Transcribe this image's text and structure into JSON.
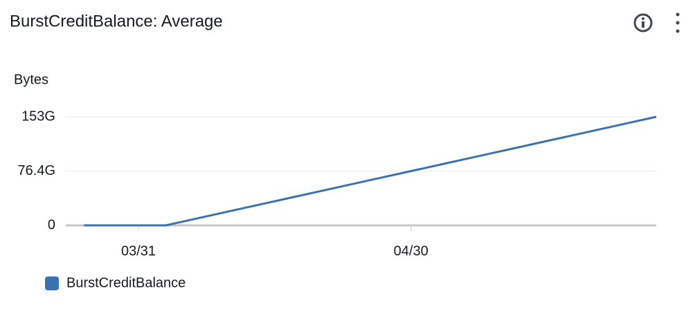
{
  "chart_data": {
    "type": "line",
    "title": "BurstCreditBalance: Average",
    "y_label": "Bytes",
    "x": [
      "03/25",
      "03/28",
      "03/31",
      "04/03",
      "04/06",
      "04/09",
      "04/12",
      "04/15",
      "04/18",
      "04/21",
      "04/24",
      "04/27",
      "04/30",
      "05/03",
      "05/06",
      "05/09",
      "05/12",
      "05/15",
      "05/18",
      "05/21",
      "05/24",
      "05/27"
    ],
    "series": [
      {
        "name": "BurstCreditBalance",
        "color": "#3a72b0",
        "values": [
          0,
          0,
          0,
          0,
          8.5,
          17,
          25.5,
          34,
          42.5,
          51,
          59.5,
          68,
          76.5,
          85,
          93.5,
          102,
          110.5,
          119,
          127.5,
          136,
          144.5,
          153
        ]
      }
    ],
    "xlim": [
      "03/23",
      "05/27"
    ],
    "xticks": [
      "03/31",
      "04/30"
    ],
    "ylim": [
      0,
      153
    ],
    "yticks": [
      0,
      {
        "value": 76.4,
        "label": "76.4G"
      },
      {
        "value": 153,
        "label": "153G"
      }
    ],
    "grid": true,
    "legend": "bottom-left"
  }
}
